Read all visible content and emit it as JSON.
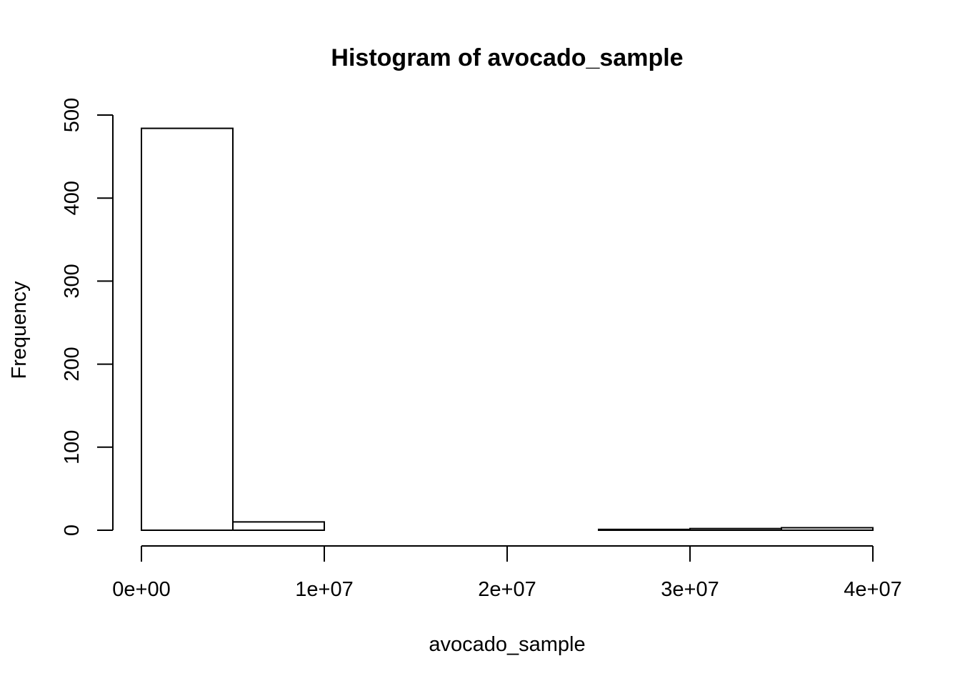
{
  "chart_data": {
    "type": "bar",
    "title": "Histogram of avocado_sample",
    "xlabel": "avocado_sample",
    "ylabel": "Frequency",
    "bin_edges": [
      0,
      5000000,
      10000000,
      15000000,
      20000000,
      25000000,
      30000000,
      35000000,
      40000000
    ],
    "values": [
      484,
      10,
      0,
      0,
      0,
      1,
      2,
      3
    ],
    "xticks": [
      0,
      10000000,
      20000000,
      30000000,
      40000000
    ],
    "xtick_labels": [
      "0e+00",
      "1e+07",
      "2e+07",
      "3e+07",
      "4e+07"
    ],
    "yticks": [
      0,
      100,
      200,
      300,
      400,
      500
    ],
    "ytick_labels": [
      "0",
      "100",
      "200",
      "300",
      "400",
      "500"
    ],
    "xlim": [
      0,
      40000000
    ],
    "ylim": [
      0,
      500
    ],
    "grid": false,
    "colors": {
      "bar_fill": "#ffffff",
      "bar_stroke": "#000000"
    }
  }
}
